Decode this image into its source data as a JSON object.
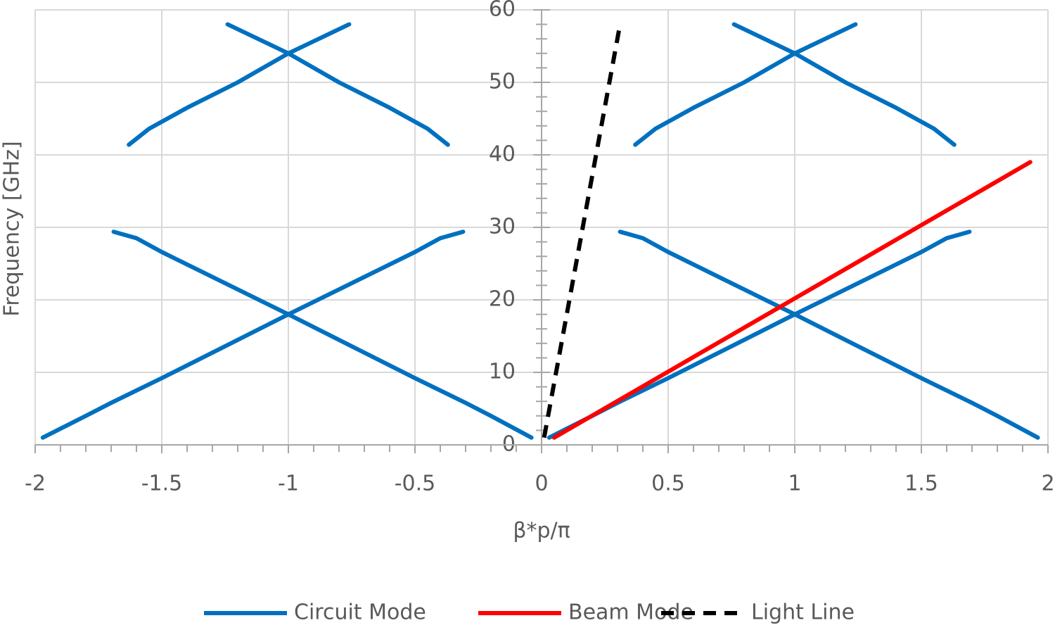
{
  "chart_data": {
    "type": "line",
    "x_label": "β*p/π",
    "y_label": "Frequency [GHz]",
    "xlim": [
      -2,
      2
    ],
    "ylim": [
      0,
      60
    ],
    "xticks": [
      -2,
      -1.5,
      -1,
      -0.5,
      0,
      0.5,
      1,
      1.5,
      2
    ],
    "yticks": [
      0,
      10,
      20,
      30,
      40,
      50,
      60
    ],
    "grid": true,
    "legend": "bottom",
    "series": [
      {
        "name": "Circuit Mode",
        "color": "#0070c0",
        "dash": false,
        "x": [
          -1.97,
          -1.8,
          -1.7,
          -1.5,
          -1.25,
          -1,
          -0.75,
          -0.5,
          -0.4,
          -0.31,
          null,
          -1.69,
          -1.6,
          -1.5,
          -1.25,
          -1,
          -0.75,
          -0.5,
          -0.3,
          -0.2,
          -0.04,
          null,
          -1.63,
          -1.55,
          -1.4,
          -1.2,
          -1,
          -0.76,
          null,
          -1.24,
          -1,
          -0.8,
          -0.6,
          -0.45,
          -0.37,
          null,
          0.03,
          0.2,
          0.3,
          0.5,
          0.75,
          1,
          1.25,
          1.5,
          1.6,
          1.69,
          null,
          0.31,
          0.4,
          0.5,
          0.75,
          1,
          1.25,
          1.5,
          1.7,
          1.8,
          1.96,
          null,
          0.37,
          0.45,
          0.6,
          0.8,
          1,
          1.24,
          null,
          0.76,
          1,
          1.2,
          1.4,
          1.55,
          1.63
        ],
        "values": [
          1,
          4,
          5.8,
          9.2,
          13.6,
          18,
          22.3,
          26.6,
          28.5,
          29.4,
          null,
          29.4,
          28.5,
          26.6,
          22.3,
          18,
          13.6,
          9.2,
          5.8,
          4,
          1,
          null,
          41.4,
          43.6,
          46.5,
          50,
          54,
          58,
          null,
          58,
          54,
          50,
          46.5,
          43.6,
          41.4,
          null,
          1,
          4,
          5.8,
          9.2,
          13.6,
          18,
          22.3,
          26.6,
          28.5,
          29.4,
          null,
          29.4,
          28.5,
          26.6,
          22.3,
          18,
          13.6,
          9.2,
          5.8,
          4,
          1,
          null,
          41.4,
          43.6,
          46.5,
          50,
          54,
          58,
          null,
          58,
          54,
          50,
          46.5,
          43.6,
          41.4
        ]
      },
      {
        "name": "Beam Mode",
        "color": "#ff0000",
        "dash": false,
        "x": [
          0.05,
          1.93
        ],
        "values": [
          1,
          39
        ]
      },
      {
        "name": "Light Line",
        "color": "#000000",
        "dash": true,
        "x": [
          0.01,
          0.31
        ],
        "values": [
          1,
          58
        ]
      }
    ]
  }
}
